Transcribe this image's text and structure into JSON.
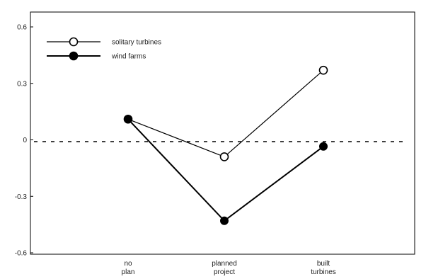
{
  "chart_data": {
    "type": "line",
    "categories": [
      [
        "no",
        "plan"
      ],
      [
        "planned",
        "project"
      ],
      [
        "built",
        "turbines"
      ]
    ],
    "series": [
      {
        "name": "solitary turbines",
        "values": [
          0.11,
          -0.09,
          0.37
        ],
        "marker": "open-circle",
        "color": "#000000"
      },
      {
        "name": "wind farms",
        "values": [
          0.11,
          -0.43,
          -0.035
        ],
        "marker": "filled-circle",
        "color": "#000000"
      }
    ],
    "ylim": [
      -0.6,
      0.6
    ],
    "yticks": [
      "-0.6",
      "-0.3",
      "0",
      "0.3",
      "0.6"
    ],
    "ytick_values": [
      -0.6,
      -0.3,
      0,
      0.3,
      0.6
    ],
    "reference_line": {
      "y": 0,
      "style": "dashed"
    },
    "legend": {
      "position": "top-left"
    },
    "grid": false,
    "title": "",
    "xlabel": "",
    "ylabel": ""
  }
}
